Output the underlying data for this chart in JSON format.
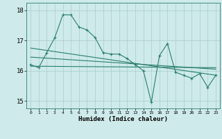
{
  "xlabel": "Humidex (Indice chaleur)",
  "x_values": [
    0,
    1,
    2,
    3,
    4,
    5,
    6,
    7,
    8,
    9,
    10,
    11,
    12,
    13,
    14,
    15,
    16,
    17,
    18,
    19,
    20,
    21,
    22,
    23
  ],
  "main_line": [
    16.2,
    16.1,
    16.6,
    17.1,
    17.85,
    17.85,
    17.45,
    17.35,
    17.1,
    16.6,
    16.55,
    16.55,
    16.4,
    16.2,
    16.0,
    14.95,
    16.5,
    16.9,
    15.95,
    15.85,
    15.75,
    15.9,
    15.45,
    15.85
  ],
  "trend_line1": [
    [
      0,
      16.75
    ],
    [
      23,
      15.85
    ]
  ],
  "trend_line2": [
    [
      0,
      16.45
    ],
    [
      23,
      16.05
    ]
  ],
  "trend_line3": [
    [
      0,
      16.15
    ],
    [
      23,
      16.1
    ]
  ],
  "bg_color": "#ceeaea",
  "line_color": "#2a7d6e",
  "grid_color": "#a8cccc",
  "ylim": [
    14.75,
    18.25
  ],
  "yticks": [
    15,
    16,
    17,
    18
  ],
  "xticks": [
    0,
    1,
    2,
    3,
    4,
    5,
    6,
    7,
    8,
    9,
    10,
    11,
    12,
    13,
    14,
    15,
    16,
    17,
    18,
    19,
    20,
    21,
    22,
    23
  ]
}
